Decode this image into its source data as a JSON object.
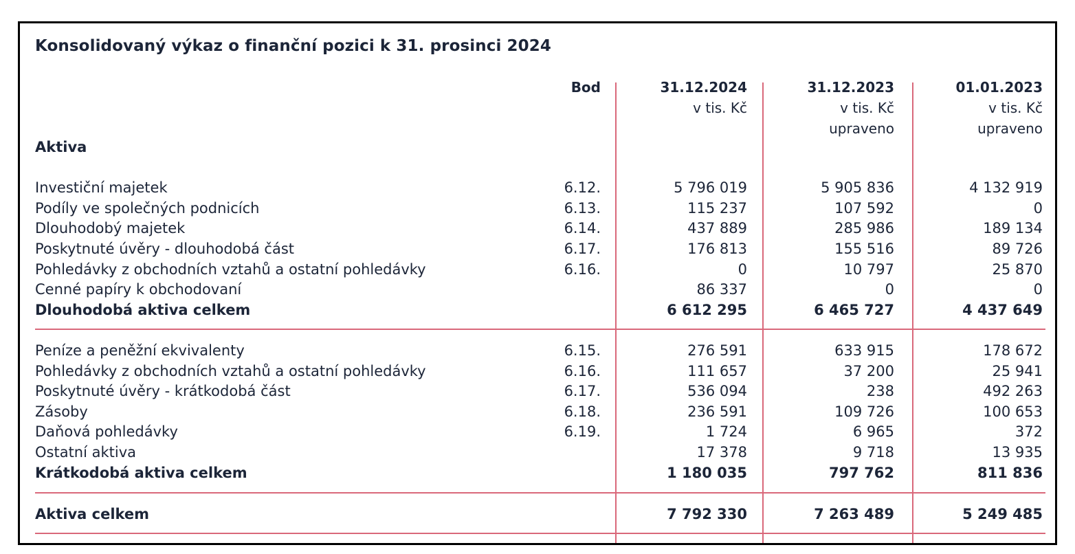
{
  "title": "Konsolidovaný výkaz o finanční pozici k 31. prosinci 2024",
  "header": {
    "bod": "Bod",
    "columns": [
      {
        "date": "31.12.2024",
        "unit": "v tis. Kč",
        "note": ""
      },
      {
        "date": "31.12.2023",
        "unit": "v tis. Kč",
        "note": "upraveno"
      },
      {
        "date": "01.01.2023",
        "unit": "v tis. Kč",
        "note": "upraveno"
      }
    ]
  },
  "section_title": "Aktiva",
  "noncurrent": {
    "rows": [
      {
        "label": "Investiční majetek",
        "bod": "6.12.",
        "v1": "5 796 019",
        "v2": "5 905 836",
        "v3": "4 132 919"
      },
      {
        "label": "Podíly ve společných podnicích",
        "bod": "6.13.",
        "v1": "115 237",
        "v2": "107 592",
        "v3": "0"
      },
      {
        "label": "Dlouhodobý majetek",
        "bod": "6.14.",
        "v1": "437 889",
        "v2": "285 986",
        "v3": "189 134"
      },
      {
        "label": "Poskytnuté úvěry - dlouhodobá část",
        "bod": "6.17.",
        "v1": "176 813",
        "v2": "155 516",
        "v3": "89 726"
      },
      {
        "label": "Pohledávky z obchodních vztahů a ostatní pohledávky",
        "bod": "6.16.",
        "v1": "0",
        "v2": "10 797",
        "v3": "25 870"
      },
      {
        "label": "Cenné papíry k obchodovaní",
        "bod": "",
        "v1": "86 337",
        "v2": "0",
        "v3": "0"
      }
    ],
    "total": {
      "label": "Dlouhodobá aktiva celkem",
      "v1": "6 612 295",
      "v2": "6 465 727",
      "v3": "4 437 649"
    }
  },
  "current": {
    "rows": [
      {
        "label": "Peníze a peněžní ekvivalenty",
        "bod": "6.15.",
        "v1": "276 591",
        "v2": "633 915",
        "v3": "178 672"
      },
      {
        "label": "Pohledávky z obchodních vztahů a ostatní pohledávky",
        "bod": "6.16.",
        "v1": "111 657",
        "v2": "37 200",
        "v3": "25 941"
      },
      {
        "label": "Poskytnuté úvěry - krátkodobá část",
        "bod": "6.17.",
        "v1": "536 094",
        "v2": "238",
        "v3": "492 263"
      },
      {
        "label": "Zásoby",
        "bod": "6.18.",
        "v1": "236 591",
        "v2": "109 726",
        "v3": "100 653"
      },
      {
        "label": "Daňová pohledávky",
        "bod": "6.19.",
        "v1": "1 724",
        "v2": "6 965",
        "v3": "372"
      },
      {
        "label": "Ostatní aktiva",
        "bod": "",
        "v1": "17 378",
        "v2": "9 718",
        "v3": "13 935"
      }
    ],
    "total": {
      "label": "Krátkodobá aktiva celkem",
      "v1": "1 180 035",
      "v2": "797 762",
      "v3": "811 836"
    }
  },
  "grand_total": {
    "label": "Aktiva celkem",
    "v1": "7 792 330",
    "v2": "7 263 489",
    "v3": "5 249 485"
  },
  "colors": {
    "text": "#1c2538",
    "rule": "#d9687a",
    "frame": "#000000"
  }
}
